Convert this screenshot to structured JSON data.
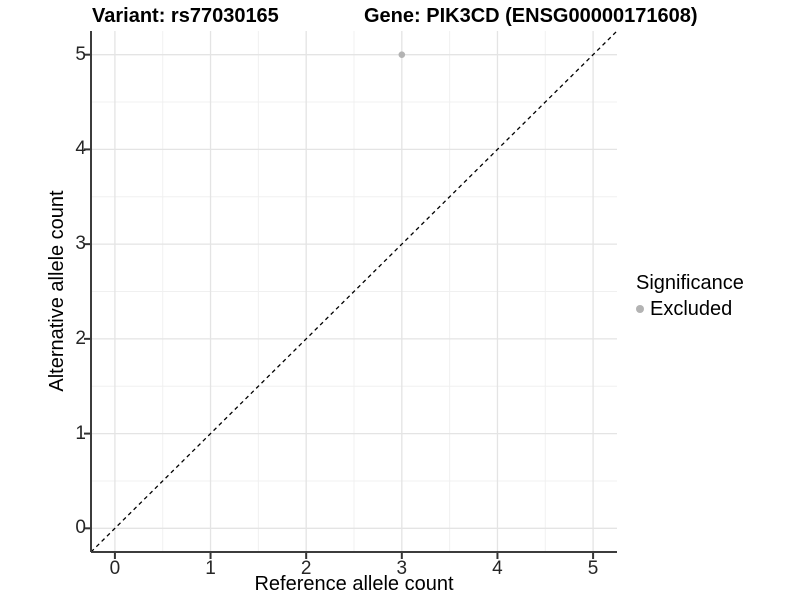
{
  "title": {
    "variant": "Variant: rs77030165",
    "gene": "Gene: PIK3CD (ENSG00000171608)"
  },
  "axes": {
    "x_label": "Reference allele count",
    "y_label": "Alternative allele count"
  },
  "legend": {
    "title": "Significance",
    "items": [
      {
        "label": "Excluded",
        "color": "#b3b3b3"
      }
    ]
  },
  "colors": {
    "background": "#ffffff",
    "grid_major": "#e4e4e4",
    "grid_minor": "#f0f0f0",
    "axis_line": "#3c3c3c",
    "tick_mark": "#333333",
    "reference_line": "#000000",
    "point": "#b3b3b3",
    "text": "#000000"
  },
  "chart_data": {
    "type": "scatter",
    "title": "Variant: rs77030165    Gene: PIK3CD (ENSG00000171608)",
    "xlabel": "Reference allele count",
    "ylabel": "Alternative allele count",
    "xlim": [
      -0.25,
      5.25
    ],
    "ylim": [
      -0.25,
      5.25
    ],
    "x_ticks": [
      0,
      1,
      2,
      3,
      4,
      5
    ],
    "y_ticks": [
      0,
      1,
      2,
      3,
      4,
      5
    ],
    "grid": true,
    "minor_grid": true,
    "legend_position": "right",
    "series": [
      {
        "name": "Excluded",
        "color": "#b3b3b3",
        "point_radius": 3.3,
        "points": [
          {
            "x": 3,
            "y": 5
          }
        ]
      }
    ],
    "reference_line": {
      "type": "y=x",
      "style": "dashed",
      "color": "#000000"
    }
  }
}
